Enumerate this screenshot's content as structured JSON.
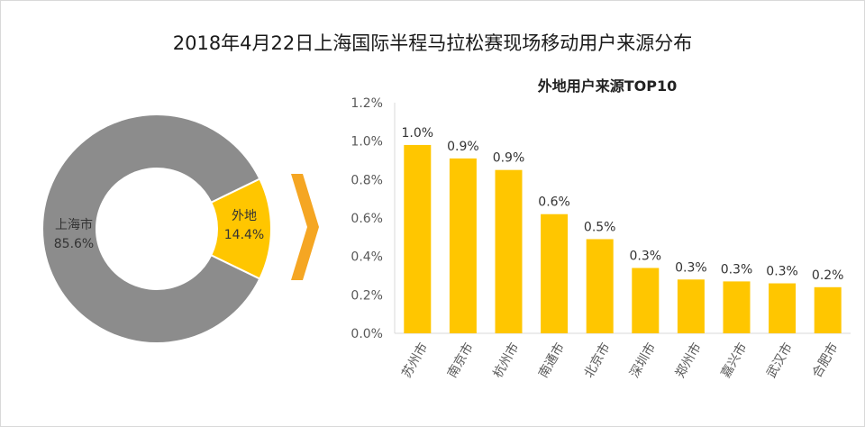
{
  "title": "2018年4月22日上海国际半程马拉松赛现场移动用户来源分布",
  "colors": {
    "local": "#8c8c8c",
    "nonlocal": "#ffc600",
    "bar": "#ffc600",
    "arrow": "#f5a623",
    "axis_text": "#595959",
    "gridline": "#d9d9d9"
  },
  "chart_data": [
    {
      "type": "pie",
      "style": "donut",
      "slices": [
        {
          "name": "上海市",
          "value": 85.6,
          "label": "85.6%"
        },
        {
          "name": "外地",
          "value": 14.4,
          "label": "14.4%"
        }
      ]
    },
    {
      "type": "bar",
      "title": "外地用户来源TOP10",
      "categories": [
        "苏州市",
        "南京市",
        "杭州市",
        "南通市",
        "北京市",
        "深圳市",
        "郑州市",
        "嘉兴市",
        "武汉市",
        "合肥市"
      ],
      "values": [
        0.98,
        0.91,
        0.85,
        0.62,
        0.49,
        0.34,
        0.28,
        0.27,
        0.26,
        0.24
      ],
      "data_labels": [
        "1.0%",
        "0.9%",
        "0.9%",
        "0.6%",
        "0.5%",
        "0.3%",
        "0.3%",
        "0.3%",
        "0.3%",
        "0.2%"
      ],
      "ylim": [
        0,
        1.2
      ],
      "yticks": [
        "0.0%",
        "0.2%",
        "0.4%",
        "0.6%",
        "0.8%",
        "1.0%",
        "1.2%"
      ],
      "grid": false,
      "xlabel": "",
      "ylabel": ""
    }
  ]
}
